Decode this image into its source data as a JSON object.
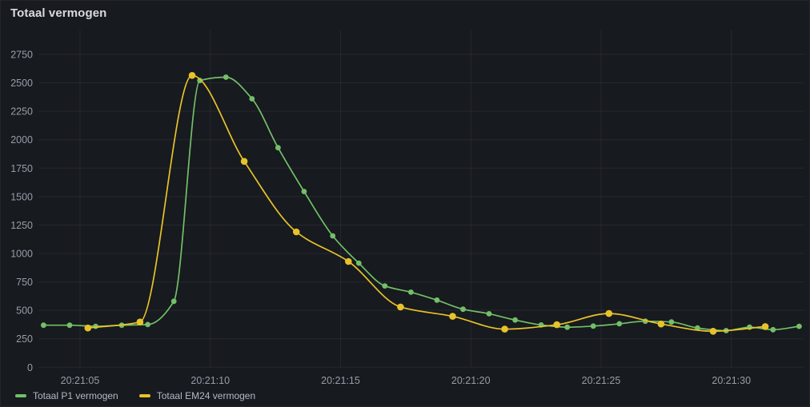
{
  "panel": {
    "title": "Totaal vermogen"
  },
  "legend": {
    "position": "bottom",
    "items": [
      {
        "label": "Totaal P1 vermogen",
        "color": "#73bf69"
      },
      {
        "label": "Totaal EM24 vermogen",
        "color": "#e8c22b"
      }
    ]
  },
  "chart_data": {
    "type": "line",
    "title": "Totaal vermogen",
    "xlabel": "",
    "ylabel": "",
    "x_unit": "time of day (HH:MM:SS); numeric x below = seconds after 20:21:00",
    "y_unit": "vermogen (W)",
    "grid": true,
    "legend_position": "bottom",
    "xlim": [
      3.35,
      32.85
    ],
    "ylim": [
      0,
      2970
    ],
    "y_ticks": [
      0,
      250,
      500,
      750,
      1000,
      1250,
      1500,
      1750,
      2000,
      2250,
      2500,
      2750
    ],
    "x_ticks": [
      {
        "t": 5,
        "label": "20:21:05"
      },
      {
        "t": 10,
        "label": "20:21:10"
      },
      {
        "t": 15,
        "label": "20:21:15"
      },
      {
        "t": 20,
        "label": "20:21:20"
      },
      {
        "t": 25,
        "label": "20:21:25"
      },
      {
        "t": 30,
        "label": "20:21:30"
      }
    ],
    "series": [
      {
        "name": "Totaal P1 vermogen",
        "color": "#73bf69",
        "point_radius": 3.4,
        "points": [
          [
            3.6,
            370
          ],
          [
            4.6,
            370
          ],
          [
            5.6,
            360
          ],
          [
            6.6,
            370
          ],
          [
            7.6,
            375
          ],
          [
            8.6,
            580
          ],
          [
            9.6,
            2520
          ],
          [
            10.6,
            2550
          ],
          [
            11.6,
            2360
          ],
          [
            12.6,
            1930
          ],
          [
            13.6,
            1545
          ],
          [
            14.7,
            1155
          ],
          [
            15.7,
            915
          ],
          [
            16.7,
            715
          ],
          [
            17.7,
            660
          ],
          [
            18.7,
            590
          ],
          [
            19.7,
            510
          ],
          [
            20.7,
            470
          ],
          [
            21.7,
            415
          ],
          [
            22.7,
            372
          ],
          [
            23.7,
            352
          ],
          [
            24.7,
            362
          ],
          [
            25.7,
            382
          ],
          [
            26.7,
            405
          ],
          [
            27.7,
            398
          ],
          [
            28.7,
            345
          ],
          [
            29.8,
            322
          ],
          [
            30.7,
            352
          ],
          [
            31.6,
            330
          ],
          [
            32.6,
            360
          ]
        ]
      },
      {
        "name": "Totaal EM24 vermogen",
        "color": "#e8c22b",
        "point_radius": 4.3,
        "points": [
          [
            5.3,
            345
          ],
          [
            7.3,
            398
          ],
          [
            9.3,
            2565
          ],
          [
            11.3,
            1810
          ],
          [
            13.3,
            1190
          ],
          [
            15.3,
            930
          ],
          [
            17.3,
            530
          ],
          [
            19.3,
            448
          ],
          [
            21.3,
            335
          ],
          [
            23.3,
            374
          ],
          [
            25.3,
            472
          ],
          [
            27.3,
            380
          ],
          [
            29.3,
            316
          ],
          [
            31.3,
            358
          ]
        ]
      }
    ]
  }
}
